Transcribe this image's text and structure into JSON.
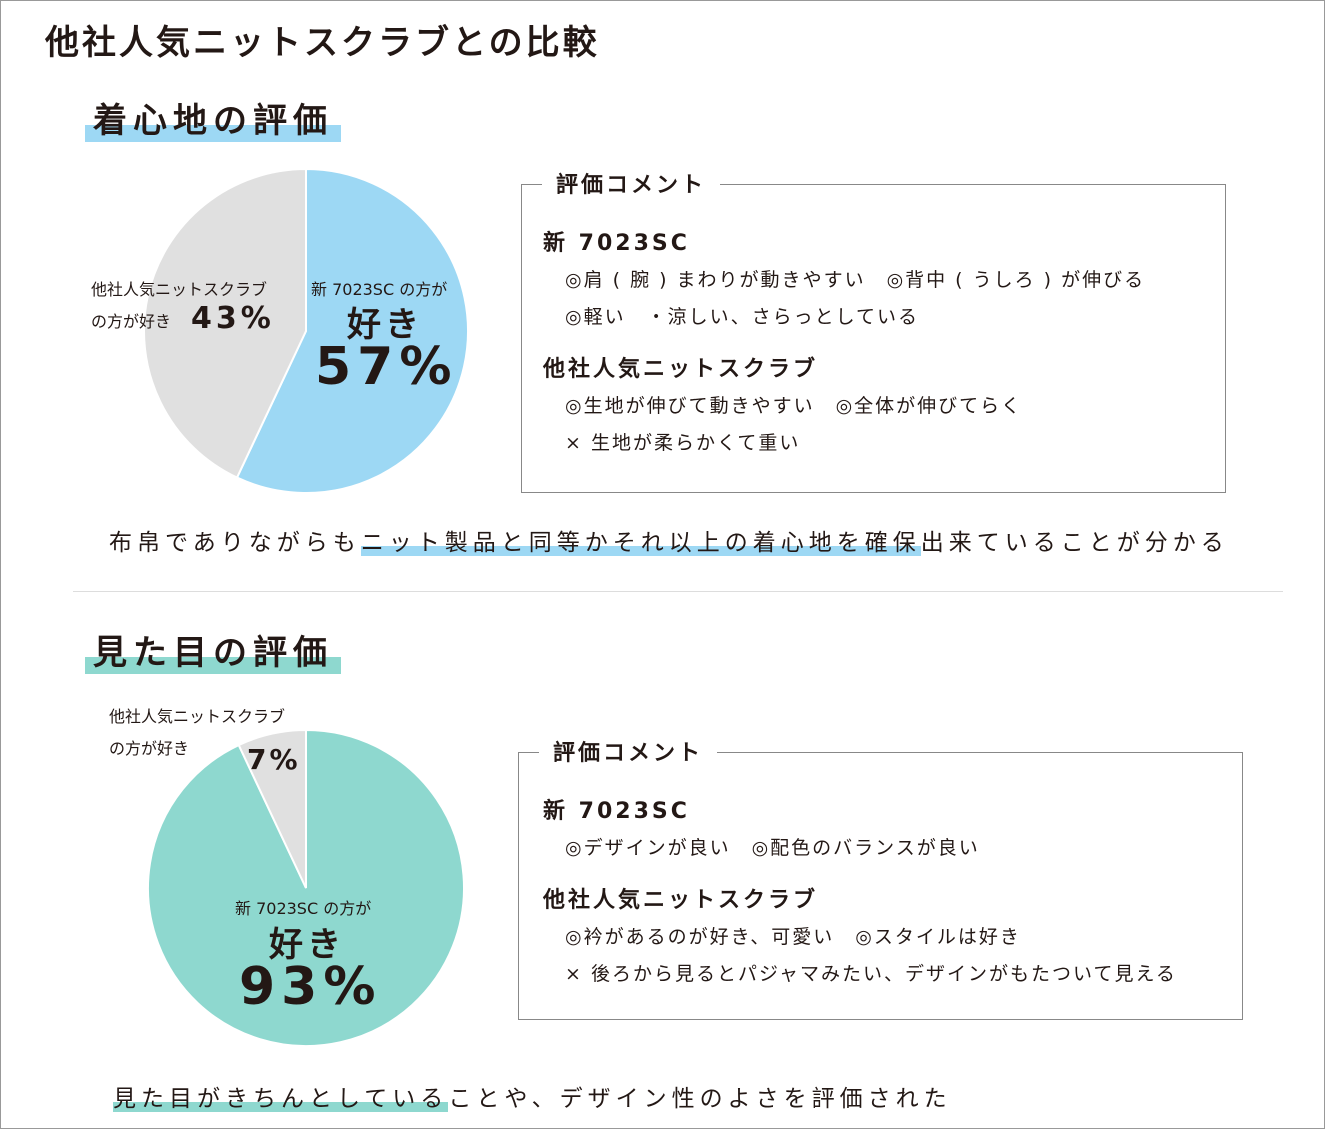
{
  "title": "他社人気ニットスクラブとの比較",
  "chart_data": [
    {
      "type": "pie",
      "title": "着心地の評価",
      "categories": [
        [
          "新 7023SC の方が",
          "好き"
        ],
        [
          "他社人気ニットスクラブ",
          "の方が好き"
        ]
      ],
      "values": [
        57,
        43
      ],
      "value_labels": [
        "57%",
        "43%"
      ],
      "colors": [
        "#9dd8f4",
        "#e0e0e0"
      ]
    },
    {
      "type": "pie",
      "title": "見た目の評価",
      "categories": [
        [
          "新 7023SC の方が",
          "好き"
        ],
        [
          "他社人気ニットスクラブ",
          "の方が好き"
        ]
      ],
      "values": [
        93,
        7
      ],
      "value_labels": [
        "93%",
        "7%"
      ],
      "colors": [
        "#8ed8cf",
        "#e0e0e0"
      ]
    }
  ],
  "sections": [
    {
      "comment_heading": "評価コメント",
      "groups": [
        {
          "name": "新 7023SC",
          "lines": [
            "◎肩 ( 腕 ) まわりが動きやすい　◎背中 ( うしろ ) が伸びる",
            "◎軽い　・涼しい、さらっとしている"
          ]
        },
        {
          "name": "他社人気ニットスクラブ",
          "lines": [
            "◎生地が伸びて動きやすい　◎全体が伸びてらく",
            "× 生地が柔らかくて重い"
          ]
        }
      ],
      "summary": [
        "布帛でありながらも",
        "ニット製品と同等かそれ以上の着心地を確保",
        "出来ていることが分かる"
      ]
    },
    {
      "comment_heading": "評価コメント",
      "groups": [
        {
          "name": "新 7023SC",
          "lines": [
            "◎デザインが良い　◎配色のバランスが良い"
          ]
        },
        {
          "name": "他社人気ニットスクラブ",
          "lines": [
            "◎衿があるのが好き、可愛い　◎スタイルは好き",
            "× 後ろから見るとパジャマみたい、デザインがもたついて見える"
          ]
        }
      ],
      "summary": [
        "見た目がきちんとしている",
        "ことや、デザイン性のよさを評価された"
      ]
    }
  ]
}
